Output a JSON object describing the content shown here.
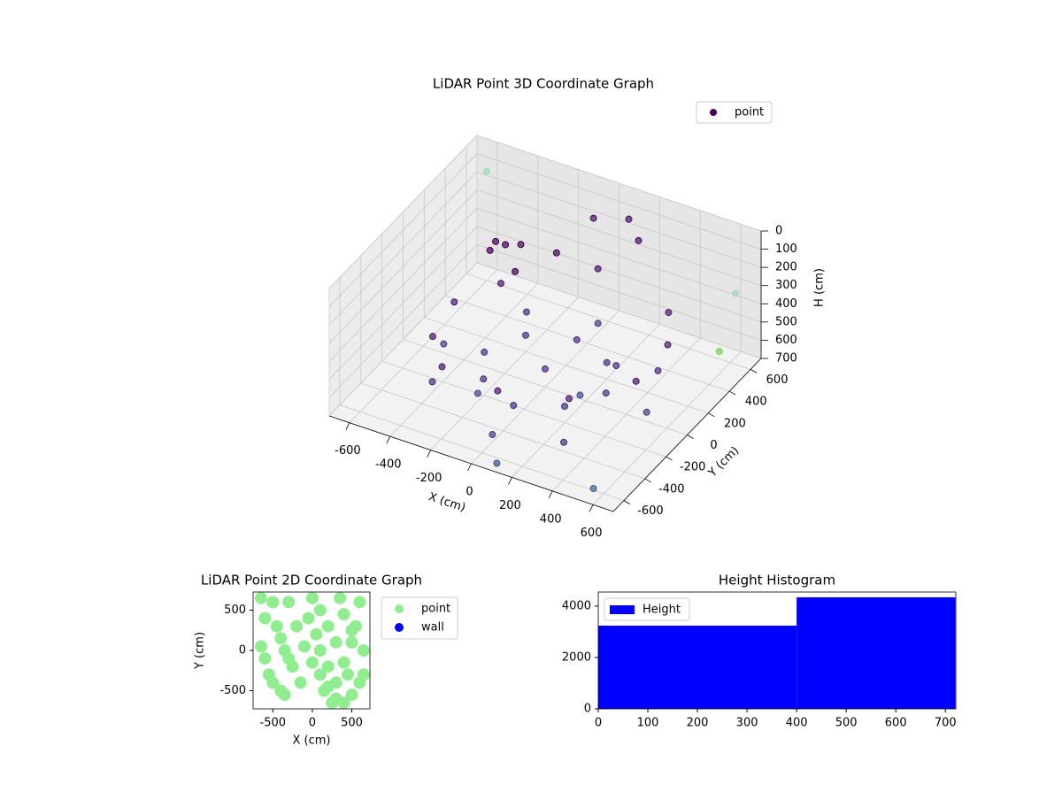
{
  "chart_data": [
    {
      "type": "scatter3d",
      "title": "LiDAR Point 3D Coordinate Graph",
      "xlabel": "X (cm)",
      "ylabel": "Y (cm)",
      "zlabel": "H (cm)",
      "xlim": [
        -700,
        700
      ],
      "ylim": [
        -700,
        700
      ],
      "zlim": [
        0,
        700
      ],
      "xticks": [
        -600,
        -400,
        -200,
        0,
        200,
        400,
        600
      ],
      "yticks": [
        -600,
        -400,
        -200,
        0,
        200,
        400,
        600
      ],
      "zticks": [
        0,
        100,
        200,
        300,
        400,
        500,
        600,
        700
      ],
      "z_inverted": true,
      "legend": "upper right",
      "series": [
        {
          "name": "point",
          "color": "#440154",
          "x": [
            0,
            300,
            -300,
            0,
            0,
            400,
            -400,
            300,
            -300,
            500,
            -500,
            0,
            0,
            200,
            -200,
            200,
            -200,
            400,
            500,
            500,
            300,
            0,
            -300,
            -450,
            -500,
            -400,
            0,
            -300,
            -250,
            -350,
            -200,
            -100,
            200,
            100,
            -400,
            250,
            -150,
            -600,
            650,
            600,
            550,
            100,
            -100,
            350
          ],
          "y": [
            0,
            0,
            0,
            300,
            -300,
            300,
            -300,
            -400,
            400,
            0,
            0,
            500,
            -500,
            200,
            -200,
            -200,
            200,
            400,
            200,
            -100,
            -350,
            -450,
            -400,
            -200,
            100,
            350,
            500,
            200,
            250,
            150,
            100,
            300,
            500,
            600,
            300,
            -150,
            -350,
            600,
            400,
            650,
            -600,
            -650,
            650,
            0
          ],
          "z": [
            600,
            620,
            620,
            620,
            620,
            640,
            640,
            650,
            640,
            650,
            650,
            650,
            660,
            610,
            610,
            610,
            610,
            380,
            400,
            420,
            440,
            450,
            460,
            470,
            480,
            490,
            350,
            150,
            160,
            170,
            200,
            180,
            120,
            100,
            230,
            560,
            580,
            100,
            500,
            350,
            690,
            690,
            200,
            450
          ],
          "colors": [
            "#46327e",
            "#46327e",
            "#46327e",
            "#46327e",
            "#46327e",
            "#472f7d",
            "#472f7d",
            "#472f7d",
            "#472f7d",
            "#433e85",
            "#433e85",
            "#433e85",
            "#433e85",
            "#46327e",
            "#46327e",
            "#46327e",
            "#46327e",
            "#48186a",
            "#48186a",
            "#48186a",
            "#48186a",
            "#48186a",
            "#481a6c",
            "#481a6c",
            "#481a6c",
            "#481a6c",
            "#48186a",
            "#440154",
            "#440154",
            "#440154",
            "#440154",
            "#440154",
            "#471063",
            "#471063",
            "#440154",
            "#3e4989",
            "#3e4989",
            "#a0dab9",
            "#7ad151",
            "#a0dab9",
            "#31688e",
            "#3b528b",
            "#471063",
            "#46327e"
          ]
        }
      ]
    },
    {
      "type": "scatter",
      "title": "LiDAR Point 2D Coordinate Graph",
      "xlabel": "X (cm)",
      "ylabel": "Y (cm)",
      "xlim": [
        -750,
        730
      ],
      "ylim": [
        -725,
        725
      ],
      "xticks": [
        -500,
        0,
        500
      ],
      "yticks": [
        -500,
        0,
        500
      ],
      "legend": "outside upper right",
      "series": [
        {
          "name": "point",
          "color": "#90ee90",
          "x": [
            -650,
            -600,
            -500,
            -450,
            -400,
            -350,
            -300,
            -250,
            -600,
            -550,
            -500,
            -400,
            -650,
            -300,
            -200,
            -100,
            0,
            100,
            200,
            300,
            400,
            500,
            600,
            650,
            0,
            100,
            200,
            300,
            400,
            500,
            600,
            100,
            200,
            300,
            400,
            500,
            -50,
            50,
            150,
            250,
            350,
            450,
            550,
            650,
            -150,
            -350
          ],
          "y": [
            650,
            400,
            600,
            300,
            150,
            0,
            -100,
            -200,
            -100,
            -300,
            -400,
            -500,
            50,
            600,
            300,
            50,
            -150,
            -300,
            -450,
            -600,
            -650,
            -550,
            -400,
            -300,
            650,
            500,
            300,
            100,
            450,
            250,
            600,
            0,
            -200,
            -400,
            -150,
            100,
            400,
            200,
            -500,
            -650,
            650,
            -300,
            300,
            0,
            -400,
            -550
          ]
        },
        {
          "name": "wall",
          "color": "#0000ff",
          "x": [],
          "y": []
        }
      ]
    },
    {
      "type": "histogram",
      "title": "Height Histogram",
      "legend": "upper left",
      "xlim": [
        0,
        721
      ],
      "ylim": [
        0,
        4550
      ],
      "xticks": [
        0,
        100,
        200,
        300,
        400,
        500,
        600,
        700
      ],
      "yticks": [
        0,
        2000,
        4000
      ],
      "series": [
        {
          "name": "Height",
          "color": "#0000ff",
          "bins": [
            0,
            400,
            720
          ],
          "values": [
            3240,
            4345
          ]
        }
      ]
    }
  ]
}
